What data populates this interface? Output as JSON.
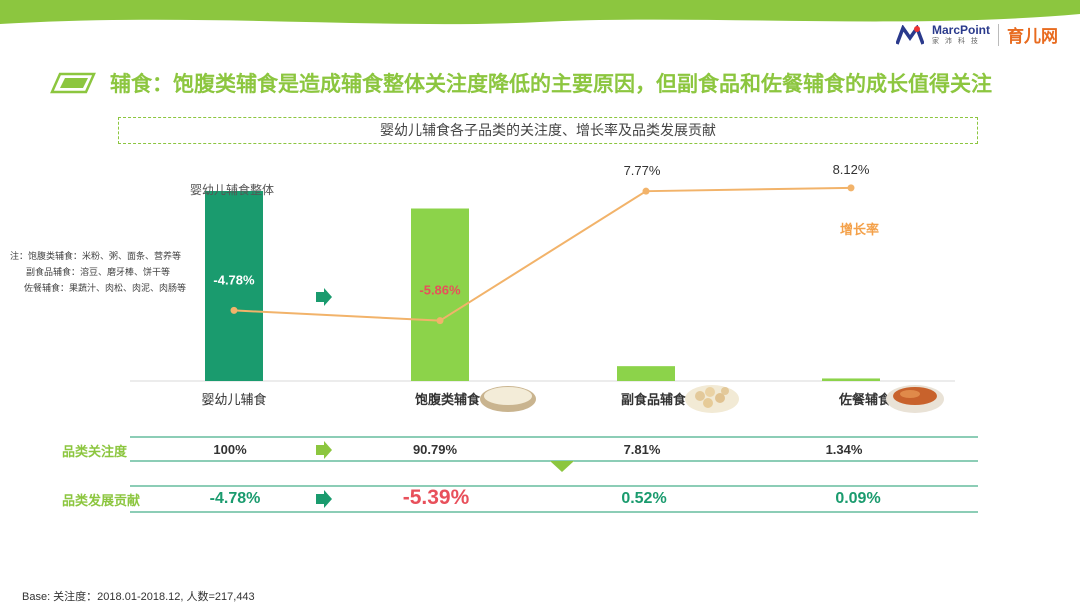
{
  "header": {
    "logo_marcpoint": "MarcPoint",
    "logo_marcpoint_sub": "家 沛 科 技",
    "logo_yuer": "育儿网"
  },
  "title": {
    "prefix": "辅食：",
    "text": "饱腹类辅食是造成辅食整体关注度降低的主要原因，但副食品和佐餐辅食的成长值得关注"
  },
  "subtitle": "婴幼儿辅食各子品类的关注度、增长率及品类发展贡献",
  "notes": {
    "line1": "注：饱腹类辅食：米粉、粥、面条、营养等",
    "line2": "副食品辅食：溶豆、磨牙棒、饼干等",
    "line3": "佐餐辅食：果蔬汁、肉松、肉泥、肉肠等"
  },
  "chart_data": {
    "type": "bar",
    "title": "婴幼儿辅食各子品类的关注度、增长率及品类发展贡献",
    "categories": [
      "婴幼儿辅食",
      "饱腹类辅食",
      "副食品辅食",
      "佐餐辅食"
    ],
    "series": [
      {
        "name": "品类关注度",
        "values": [
          100,
          90.79,
          7.81,
          1.34
        ],
        "colors": [
          "#1a9b6e",
          "#8cd34a",
          "#8cd34a",
          "#8cd34a"
        ]
      },
      {
        "name": "增长率",
        "type": "line",
        "values": [
          -4.78,
          -5.86,
          7.77,
          8.12
        ],
        "color": "#f2b36a",
        "labels": [
          "-4.78%",
          "-5.86%",
          "7.77%",
          "8.12%"
        ]
      }
    ],
    "bar_annotation": "婴幼儿辅食整体",
    "line_legend": "增长率",
    "ylim_bar": [
      0,
      100
    ],
    "ylim_line": [
      -10,
      10
    ]
  },
  "table": {
    "attention_label": "品类关注度",
    "attention_values": [
      "100%",
      "90.79%",
      "7.81%",
      "1.34%"
    ],
    "contribution_label": "品类发展贡献",
    "contribution_values": [
      "-4.78%",
      "-5.39%",
      "0.52%",
      "0.09%"
    ]
  },
  "colors": {
    "accent_green": "#8cc63f",
    "dark_green": "#1a9b6e",
    "bar_green": "#8cd34a",
    "line_orange": "#f2b36a",
    "red": "#e8505b",
    "legend_orange": "#f4a14a"
  },
  "footer": {
    "base": "Base: 关注度：2018.01-2018.12, 人数=217,443"
  }
}
